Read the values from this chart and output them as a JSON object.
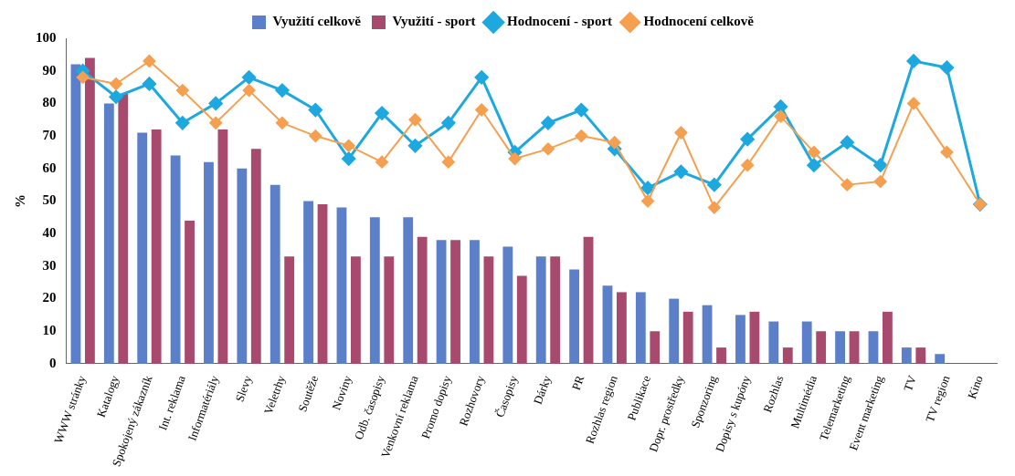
{
  "chart_data": {
    "type": "bar",
    "ylabel": "%",
    "categories": [
      "WWW stránky",
      "Katalogy",
      "Spokojený zákazník",
      "Int. reklama",
      "Informatériály",
      "Slevy",
      "Veletrhy",
      "Soutěže",
      "Noviny",
      "Odb. časopisy",
      "Venkovní reklama",
      "Promo dopisy",
      "Rozhovory",
      "Časopisy",
      "Dárky",
      "PR",
      "Rozhlas region",
      "Publikace",
      "Dopr. prostředky",
      "Sponzoring",
      "Dopisy s kupóny",
      "Rozhlas",
      "Multimédia",
      "Telemarketing",
      "Event marketing",
      "TV",
      "TV region",
      "Kino"
    ],
    "series": [
      {
        "name": "Využití celkově",
        "color": "#5b7fc8",
        "values": [
          92,
          80,
          71,
          64,
          62,
          60,
          55,
          50,
          48,
          45,
          45,
          38,
          38,
          36,
          33,
          29,
          24,
          22,
          20,
          18,
          15,
          13,
          13,
          10,
          10,
          5,
          3,
          0
        ]
      },
      {
        "name": "Využití - sport",
        "color": "#a84a6e",
        "values": [
          94,
          83,
          72,
          44,
          72,
          66,
          33,
          49,
          33,
          33,
          39,
          38,
          33,
          27,
          33,
          39,
          22,
          10,
          16,
          5,
          16,
          5,
          10,
          10,
          16,
          5,
          0,
          0
        ]
      },
      {
        "name": "Hodnocení - sport",
        "type": "line",
        "color": "#1ea8e0",
        "values": [
          90,
          82,
          86,
          74,
          80,
          88,
          84,
          78,
          63,
          77,
          67,
          74,
          88,
          65,
          74,
          78,
          66,
          54,
          59,
          55,
          69,
          79,
          61,
          68,
          61,
          93,
          91,
          49
        ]
      },
      {
        "name": "Hodnocení celkově",
        "type": "line",
        "color": "#f5a050",
        "values": [
          88,
          86,
          93,
          84,
          74,
          84,
          74,
          70,
          67,
          62,
          75,
          62,
          78,
          63,
          66,
          70,
          68,
          50,
          71,
          48,
          61,
          76,
          65,
          55,
          56,
          80,
          65,
          49
        ]
      }
    ],
    "ylim": [
      0,
      100
    ],
    "yticks": [
      0,
      10,
      20,
      30,
      40,
      50,
      60,
      70,
      80,
      90,
      100
    ],
    "grid": false,
    "legend": "top",
    "marker": "diamond",
    "line_style": "solid"
  }
}
